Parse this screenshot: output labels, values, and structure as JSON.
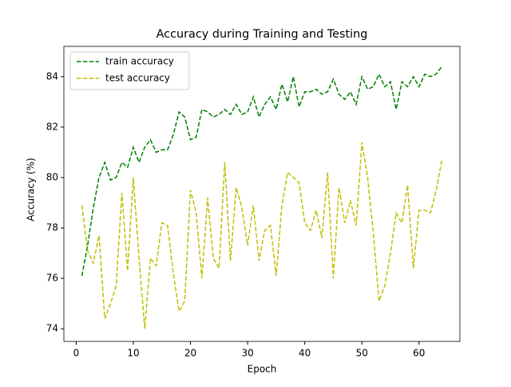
{
  "chart_data": {
    "type": "line",
    "title": "Accuracy during Training and Testing",
    "x_label": "Epoch",
    "y_label": "Accuracy (%)",
    "x": [
      1,
      2,
      3,
      4,
      5,
      6,
      7,
      8,
      9,
      10,
      11,
      12,
      13,
      14,
      15,
      16,
      17,
      18,
      19,
      20,
      21,
      22,
      23,
      24,
      25,
      26,
      27,
      28,
      29,
      30,
      31,
      32,
      33,
      34,
      35,
      36,
      37,
      38,
      39,
      40,
      41,
      42,
      43,
      44,
      45,
      46,
      47,
      48,
      49,
      50,
      51,
      52,
      53,
      54,
      55,
      56,
      57,
      58,
      59,
      60,
      61,
      62,
      63,
      64
    ],
    "series": [
      {
        "name": "train accuracy",
        "color": "#008000",
        "values": [
          76.1,
          77.3,
          78.8,
          80.0,
          80.6,
          79.9,
          80.0,
          80.6,
          80.4,
          81.2,
          80.6,
          81.2,
          81.5,
          81.0,
          81.1,
          81.1,
          81.7,
          82.6,
          82.4,
          81.5,
          81.6,
          82.7,
          82.6,
          82.4,
          82.5,
          82.7,
          82.5,
          82.9,
          82.5,
          82.6,
          83.2,
          82.4,
          82.9,
          83.2,
          82.7,
          83.7,
          83.0,
          84.0,
          82.8,
          83.4,
          83.4,
          83.5,
          83.3,
          83.4,
          83.9,
          83.3,
          83.1,
          83.4,
          82.9,
          84.0,
          83.5,
          83.6,
          84.1,
          83.6,
          83.8,
          82.7,
          83.8,
          83.6,
          84.0,
          83.6,
          84.1,
          84.0,
          84.1,
          84.4
        ]
      },
      {
        "name": "test accuracy",
        "color": "#bfbf00",
        "values": [
          78.9,
          77.1,
          76.6,
          77.7,
          74.4,
          75.0,
          75.7,
          79.4,
          76.3,
          80.0,
          76.8,
          74.0,
          76.8,
          76.5,
          78.2,
          78.1,
          76.2,
          74.7,
          75.1,
          79.5,
          78.6,
          76.0,
          79.2,
          76.8,
          76.4,
          80.6,
          76.7,
          79.6,
          78.8,
          77.3,
          78.9,
          76.7,
          77.9,
          78.1,
          76.1,
          78.9,
          80.2,
          80.0,
          79.8,
          78.2,
          77.9,
          78.7,
          77.6,
          80.2,
          76.0,
          79.6,
          78.2,
          79.1,
          78.1,
          81.4,
          80.0,
          77.8,
          75.1,
          75.7,
          77.0,
          78.6,
          78.2,
          79.7,
          76.4,
          78.7,
          78.7,
          78.6,
          79.5,
          80.7
        ]
      }
    ],
    "xlim": [
      -2.15,
      67.15
    ],
    "ylim": [
      73.5,
      85.2
    ],
    "xticks": [
      0,
      10,
      20,
      30,
      40,
      50,
      60
    ],
    "yticks": [
      74,
      76,
      78,
      80,
      82,
      84
    ],
    "line_style": "dashed",
    "legend": "upper left",
    "grid": false
  }
}
